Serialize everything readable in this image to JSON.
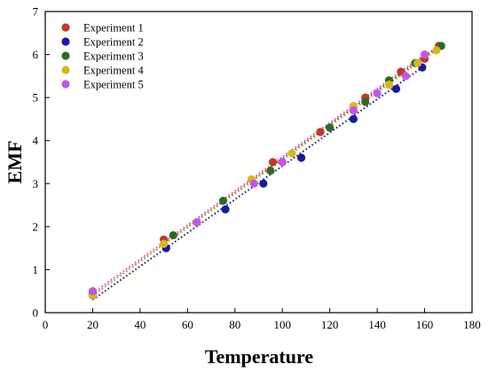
{
  "chart_data": {
    "type": "scatter",
    "title": "",
    "xlabel": "Temperature",
    "ylabel": "EMF",
    "xlim": [
      0,
      180
    ],
    "ylim": [
      0,
      7
    ],
    "xticks": [
      0,
      20,
      40,
      60,
      80,
      100,
      120,
      140,
      160,
      180
    ],
    "yticks": [
      0,
      1,
      2,
      3,
      4,
      5,
      6,
      7
    ],
    "grid": false,
    "legend_position": "top-left",
    "series": [
      {
        "name": "Experiment 1",
        "color": "#c0392b",
        "points": [
          [
            20,
            0.45
          ],
          [
            50,
            1.7
          ],
          [
            96,
            3.5
          ],
          [
            116,
            4.2
          ],
          [
            135,
            5.0
          ],
          [
            150,
            5.6
          ],
          [
            160,
            5.9
          ],
          [
            166,
            6.2
          ]
        ],
        "fit": [
          [
            20,
            0.4
          ],
          [
            166,
            6.2
          ]
        ]
      },
      {
        "name": "Experiment 2",
        "color": "#1a1aa0",
        "points": [
          [
            20,
            0.4
          ],
          [
            51,
            1.5
          ],
          [
            76,
            2.4
          ],
          [
            92,
            3.0
          ],
          [
            108,
            3.6
          ],
          [
            130,
            4.5
          ],
          [
            148,
            5.2
          ],
          [
            159,
            5.7
          ]
        ],
        "fit": [
          [
            20,
            0.3
          ],
          [
            159,
            5.7
          ]
        ]
      },
      {
        "name": "Experiment 3",
        "color": "#2e6b1f",
        "points": [
          [
            20,
            0.45
          ],
          [
            54,
            1.8
          ],
          [
            75,
            2.6
          ],
          [
            95,
            3.3
          ],
          [
            120,
            4.3
          ],
          [
            135,
            4.9
          ],
          [
            145,
            5.4
          ],
          [
            156,
            5.8
          ],
          [
            167,
            6.2
          ]
        ],
        "fit": [
          [
            20,
            0.4
          ],
          [
            167,
            6.2
          ]
        ]
      },
      {
        "name": "Experiment 4",
        "color": "#d4b81c",
        "points": [
          [
            20,
            0.4
          ],
          [
            50,
            1.6
          ],
          [
            87,
            3.1
          ],
          [
            104,
            3.7
          ],
          [
            130,
            4.8
          ],
          [
            145,
            5.3
          ],
          [
            157,
            5.8
          ],
          [
            165,
            6.1
          ]
        ],
        "fit": [
          [
            20,
            0.4
          ],
          [
            165,
            6.1
          ]
        ]
      },
      {
        "name": "Experiment 5",
        "color": "#c455e8",
        "points": [
          [
            20,
            0.5
          ],
          [
            64,
            2.1
          ],
          [
            88,
            3.0
          ],
          [
            100,
            3.5
          ],
          [
            130,
            4.7
          ],
          [
            140,
            5.1
          ],
          [
            152,
            5.5
          ],
          [
            160,
            6.0
          ]
        ],
        "fit": [
          [
            20,
            0.45
          ],
          [
            160,
            6.0
          ]
        ]
      }
    ]
  }
}
